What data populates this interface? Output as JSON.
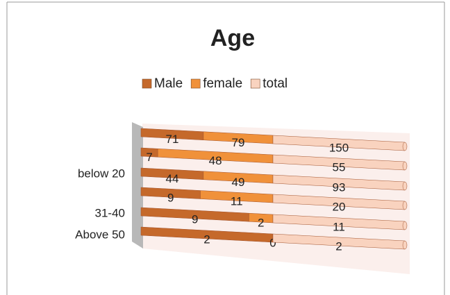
{
  "chart_data": {
    "type": "bar",
    "stack": "percent",
    "orientation": "horizontal",
    "title": "Age",
    "categories": [
      null,
      "below 20",
      null,
      "31-40",
      null,
      "Above 50"
    ],
    "series": [
      {
        "name": "Male",
        "color": "#c5692b",
        "values": [
          71,
          7,
          44,
          9,
          9,
          2
        ]
      },
      {
        "name": "female",
        "color": "#f0913a",
        "values": [
          79,
          48,
          49,
          11,
          2,
          0
        ]
      },
      {
        "name": "total",
        "color": "#f9d3bf",
        "values": [
          150,
          55,
          93,
          20,
          11,
          2
        ]
      }
    ],
    "legend": "top"
  }
}
